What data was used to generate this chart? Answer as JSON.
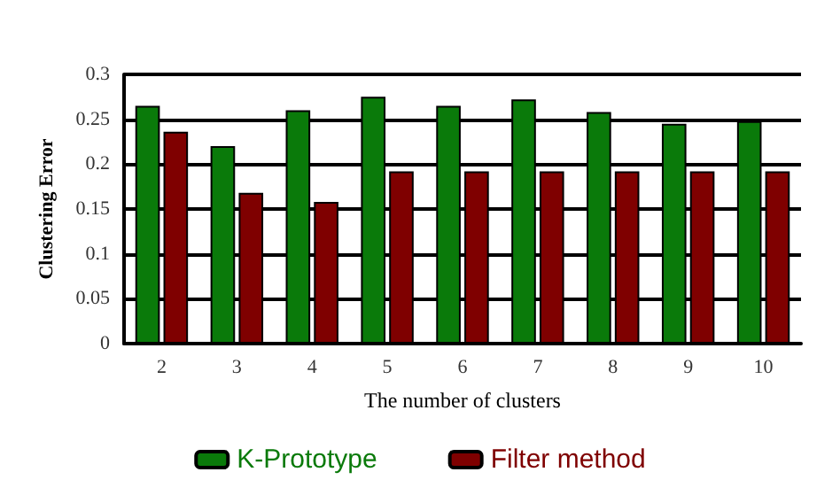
{
  "chart_data": {
    "type": "bar",
    "xlabel": "The number of clusters",
    "ylabel": "Clustering Error",
    "categories": [
      "2",
      "3",
      "4",
      "5",
      "6",
      "7",
      "8",
      "9",
      "10"
    ],
    "series": [
      {
        "name": "K-Prototype",
        "color": "#0a7a0a",
        "values": [
          0.265,
          0.22,
          0.26,
          0.275,
          0.265,
          0.272,
          0.258,
          0.245,
          0.248
        ]
      },
      {
        "name": "Filter method",
        "color": "#7f0000",
        "values": [
          0.236,
          0.168,
          0.158,
          0.192,
          0.192,
          0.192,
          0.192,
          0.192,
          0.192
        ]
      }
    ],
    "ylim": [
      0,
      0.3
    ],
    "yticks": [
      0,
      0.05,
      0.1,
      0.15,
      0.2,
      0.25,
      0.3
    ],
    "grid": "y",
    "legend": "bottom"
  }
}
